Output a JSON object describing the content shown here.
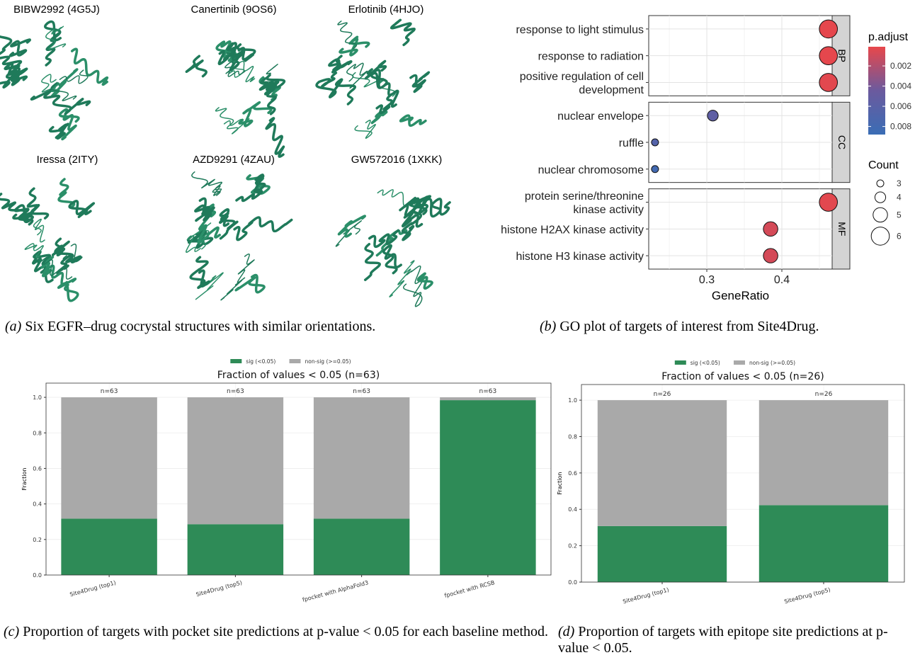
{
  "panel_a": {
    "structures": [
      "BIBW2992 (4G5J)",
      "Canertinib (9OS6)",
      "Erlotinib (4HJO)",
      "Iressa (2ITY)",
      "AZD9291 (4ZAU)",
      "GW572016 (1XKK)"
    ]
  },
  "captions": [
    {
      "label": "(a)",
      "text": "Six EGFR–drug cocrystal structures with similar orientations."
    },
    {
      "label": "(b)",
      "text": "GO plot of targets of interest from Site4Drug."
    },
    {
      "label": "(c)",
      "text": "Proportion of targets with pocket site predictions at p-value < 0.05 for each baseline method."
    },
    {
      "label": "(d)",
      "text": "Proportion of targets with epitope site predictions at p-value < 0.05."
    }
  ],
  "chart_data": [
    {
      "type": "dot",
      "xlabel": "GeneRatio",
      "xlim": [
        0.2226,
        0.467
      ],
      "xticks": [
        0.3,
        0.4
      ],
      "facets": [
        {
          "name": "BP",
          "categories": [
            [
              "response to light stimulus"
            ],
            [
              "response to radiation"
            ],
            [
              "positive regulation of cell",
              "development"
            ]
          ],
          "values": [
            0.462,
            0.462,
            0.462
          ],
          "counts": [
            6,
            6,
            6
          ],
          "p_adjust": [
            0.0002,
            0.0002,
            0.0003
          ]
        },
        {
          "name": "CC",
          "categories": [
            [
              "nuclear envelope"
            ],
            [
              "ruffle"
            ],
            [
              "nuclear chromosome"
            ]
          ],
          "values": [
            0.308,
            0.231,
            0.231
          ],
          "counts": [
            4,
            3,
            3
          ],
          "p_adjust": [
            0.0055,
            0.0065,
            0.008
          ]
        },
        {
          "name": "MF",
          "categories": [
            [
              "protein serine/threonine",
              "kinase activity"
            ],
            [
              "histone H2AX kinase activity"
            ],
            [
              "histone H3 kinase activity"
            ]
          ],
          "values": [
            0.462,
            0.385,
            0.385
          ],
          "counts": [
            6,
            5,
            5
          ],
          "p_adjust": [
            0.0003,
            0.0008,
            0.0008
          ]
        }
      ],
      "color_legend": {
        "title": "p.adjust",
        "lim": [
          0.0001,
          0.0088
        ],
        "ticks": [
          0.002,
          0.004,
          0.006,
          0.008
        ],
        "colors": [
          "#e8474b",
          "#6b5a9e",
          "#3a6db5"
        ]
      },
      "size_legend": {
        "title": "Count",
        "ticks": [
          3,
          4,
          5,
          6
        ]
      }
    },
    {
      "type": "stacked_bar",
      "title": "Fraction of values < 0.05 (n=63)",
      "ylabel": "Fraction",
      "categories": [
        "Site4Drug (top1)",
        "Site4Drug (top5)",
        "fpocket with AlphaFold3",
        "fpocket with RCSB"
      ],
      "series": [
        {
          "name": "sig (<0.05)",
          "color": "#2e8b57",
          "values": [
            0.317,
            0.286,
            0.317,
            0.984
          ]
        },
        {
          "name": "non-sig (>=0.05)",
          "color": "#a9a9a9",
          "values": [
            0.683,
            0.714,
            0.683,
            0.016
          ]
        }
      ],
      "annotations": [
        "n=63",
        "n=63",
        "n=63",
        "n=63"
      ],
      "ylim": [
        0,
        1.08
      ],
      "yticks": [
        {
          "value": 0,
          "label": "0.0"
        },
        0.2,
        0.4,
        0.6,
        0.8,
        {
          "value": 1,
          "label": "1.0"
        }
      ]
    },
    {
      "type": "stacked_bar",
      "title": "Fraction of values < 0.05 (n=26)",
      "ylabel": "Fraction",
      "categories": [
        "Site4Drug (top1)",
        "Site4Drug (top5)"
      ],
      "series": [
        {
          "name": "sig (<0.05)",
          "color": "#2e8b57",
          "values": [
            0.308,
            0.423
          ]
        },
        {
          "name": "non-sig (>=0.05)",
          "color": "#a9a9a9",
          "values": [
            0.692,
            0.577
          ]
        }
      ],
      "annotations": [
        "n=26",
        "n=26"
      ],
      "ylim": [
        0,
        1.086
      ],
      "yticks": [
        {
          "value": 0,
          "label": "0.0"
        },
        0.2,
        0.4,
        0.6,
        0.8,
        {
          "value": 1,
          "label": "1.0"
        }
      ]
    }
  ]
}
